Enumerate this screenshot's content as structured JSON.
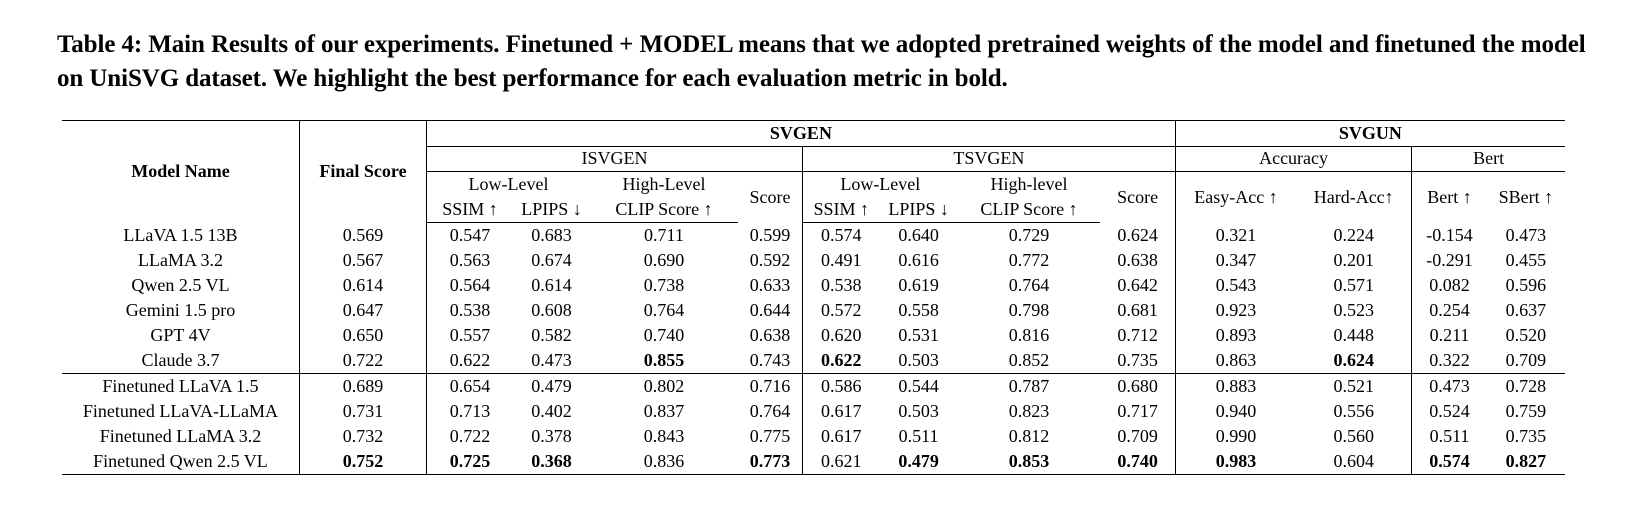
{
  "caption": "Table 4: Main Results of our experiments. Finetuned + MODEL means that we adopted pretrained weights of the model and finetuned the model on UniSVG dataset. We highlight the best performance for each evaluation metric in bold.",
  "header": {
    "model_name": "Model Name",
    "final_score": "Final Score",
    "svgen": "SVGEN",
    "svgun": "SVGUN",
    "isvgen": "ISVGEN",
    "tsvgen": "TSVGEN",
    "accuracy": "Accuracy",
    "bert_group": "Bert",
    "low_level": "Low-Level",
    "high_level_i": "High-Level",
    "high_level_t": "High-level",
    "score": "Score",
    "ssim": "SSIM ↑",
    "lpips": "LPIPS ↓",
    "clip": "CLIP Score ↑",
    "easy_acc": "Easy-Acc ↑",
    "hard_acc": "Hard-Acc↑",
    "bert": "Bert ↑",
    "sbert": "SBert ↑"
  },
  "rows": [
    {
      "model": "LLaVA 1.5 13B",
      "values": [
        "0.569",
        "0.547",
        "0.683",
        "0.711",
        "0.599",
        "0.574",
        "0.640",
        "0.729",
        "0.624",
        "0.321",
        "0.224",
        "-0.154",
        "0.473"
      ]
    },
    {
      "model": "LLaMA 3.2",
      "values": [
        "0.567",
        "0.563",
        "0.674",
        "0.690",
        "0.592",
        "0.491",
        "0.616",
        "0.772",
        "0.638",
        "0.347",
        "0.201",
        "-0.291",
        "0.455"
      ]
    },
    {
      "model": "Qwen 2.5 VL",
      "values": [
        "0.614",
        "0.564",
        "0.614",
        "0.738",
        "0.633",
        "0.538",
        "0.619",
        "0.764",
        "0.642",
        "0.543",
        "0.571",
        "0.082",
        "0.596"
      ]
    },
    {
      "model": "Gemini 1.5 pro",
      "values": [
        "0.647",
        "0.538",
        "0.608",
        "0.764",
        "0.644",
        "0.572",
        "0.558",
        "0.798",
        "0.681",
        "0.923",
        "0.523",
        "0.254",
        "0.637"
      ]
    },
    {
      "model": "GPT 4V",
      "values": [
        "0.650",
        "0.557",
        "0.582",
        "0.740",
        "0.638",
        "0.620",
        "0.531",
        "0.816",
        "0.712",
        "0.893",
        "0.448",
        "0.211",
        "0.520"
      ]
    },
    {
      "model": "Claude 3.7",
      "values": [
        "0.722",
        "0.622",
        "0.473",
        "0.855",
        "0.743",
        "0.622",
        "0.503",
        "0.852",
        "0.735",
        "0.863",
        "0.624",
        "0.322",
        "0.709"
      ],
      "bold": [
        3,
        5,
        10
      ]
    },
    {
      "model": "Finetuned LLaVA 1.5",
      "values": [
        "0.689",
        "0.654",
        "0.479",
        "0.802",
        "0.716",
        "0.586",
        "0.544",
        "0.787",
        "0.680",
        "0.883",
        "0.521",
        "0.473",
        "0.728"
      ]
    },
    {
      "model": "Finetuned LLaVA-LLaMA",
      "values": [
        "0.731",
        "0.713",
        "0.402",
        "0.837",
        "0.764",
        "0.617",
        "0.503",
        "0.823",
        "0.717",
        "0.940",
        "0.556",
        "0.524",
        "0.759"
      ]
    },
    {
      "model": "Finetuned LLaMA 3.2",
      "values": [
        "0.732",
        "0.722",
        "0.378",
        "0.843",
        "0.775",
        "0.617",
        "0.511",
        "0.812",
        "0.709",
        "0.990",
        "0.560",
        "0.511",
        "0.735"
      ]
    },
    {
      "model": "Finetuned Qwen 2.5 VL",
      "values": [
        "0.752",
        "0.725",
        "0.368",
        "0.836",
        "0.773",
        "0.621",
        "0.479",
        "0.853",
        "0.740",
        "0.983",
        "0.604",
        "0.574",
        "0.827"
      ],
      "bold": [
        0,
        1,
        2,
        4,
        6,
        7,
        8,
        9,
        11,
        12
      ]
    }
  ]
}
